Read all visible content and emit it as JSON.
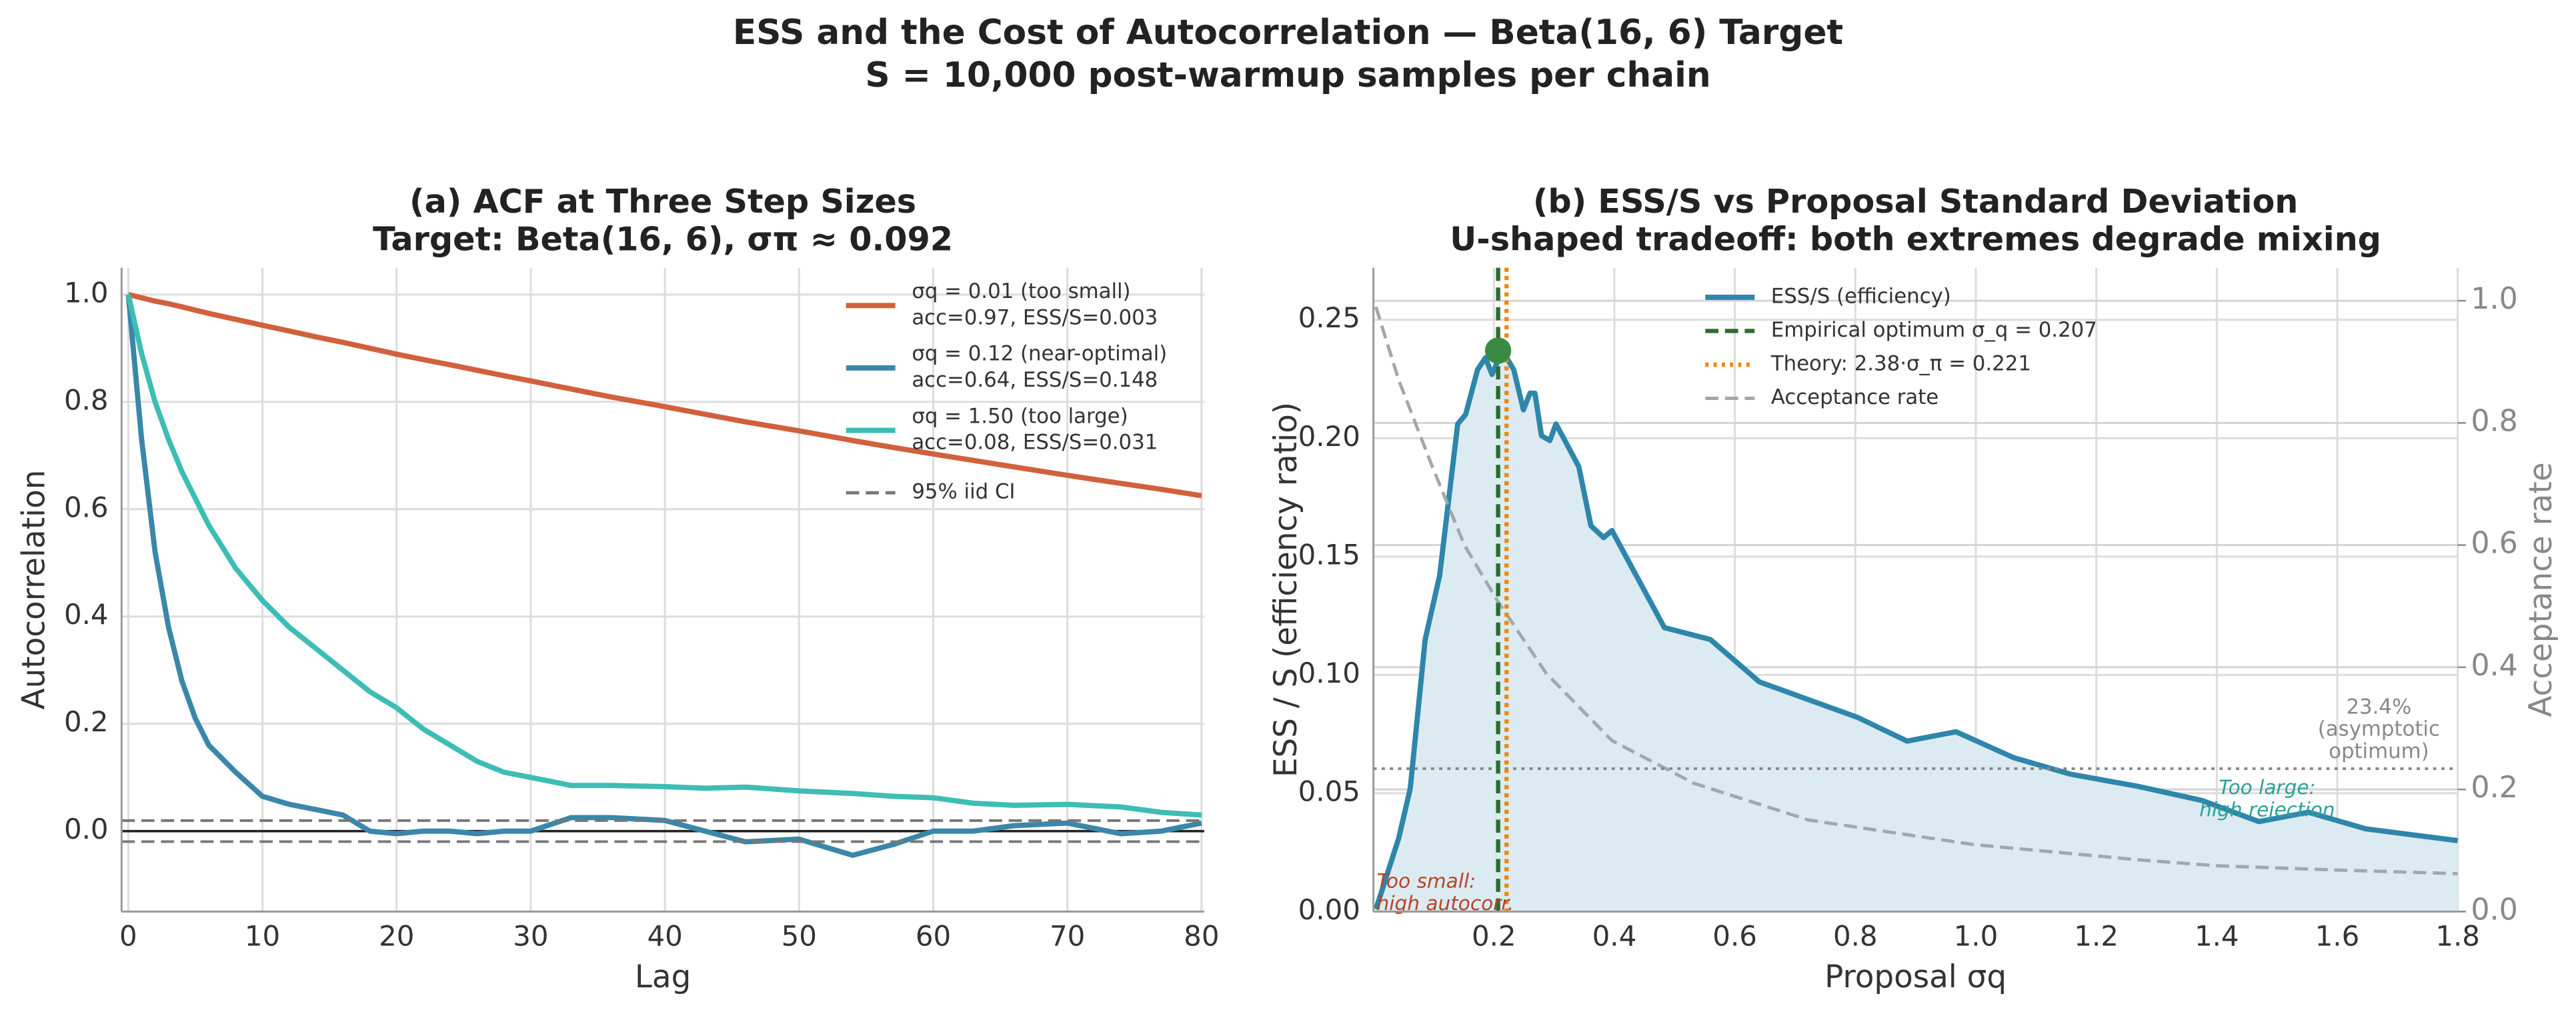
{
  "title": "ESS and the Cost of Autocorrelation — Beta(16, 6) Target",
  "subtitle": "S = 10,000 post-warmup samples per chain",
  "chart_data": [
    {
      "type": "line",
      "title": "(a)  ACF at Three Step Sizes",
      "subtitle": "Target: Beta(16, 6),  σπ ≈ 0.092",
      "x_label": "Lag",
      "y_label": "Autocorrelation",
      "xlim": [
        -0.5,
        80.2
      ],
      "ylim": [
        -0.15,
        1.05
      ],
      "xticks": [
        0,
        10,
        20,
        30,
        40,
        50,
        60,
        70,
        80
      ],
      "yticks": [
        {
          "value": 0,
          "label": "0.0"
        },
        0.2,
        0.4,
        0.6,
        0.8,
        {
          "value": 1,
          "label": "1.0"
        }
      ],
      "grid": true,
      "x": [
        0,
        1,
        2,
        3,
        4,
        5,
        6,
        8,
        10,
        12,
        14,
        16,
        18,
        20,
        22,
        24,
        26,
        28,
        30,
        33,
        36,
        40,
        43,
        46,
        50,
        54,
        57,
        60,
        63,
        66,
        70,
        74,
        77,
        80
      ],
      "series": [
        {
          "name": "σq = 0.01  (too small)",
          "note": "acc=0.97, ESS/S=0.003",
          "color": "#d1603d",
          "values": [
            1,
            0.994,
            0.988,
            0.983,
            0.977,
            0.971,
            0.965,
            0.954,
            0.943,
            0.932,
            0.921,
            0.911,
            0.9,
            0.889,
            0.879,
            0.869,
            0.859,
            0.849,
            0.839,
            0.824,
            0.809,
            0.791,
            0.777,
            0.763,
            0.746,
            0.728,
            0.715,
            0.703,
            0.691,
            0.679,
            0.663,
            0.648,
            0.637,
            0.625
          ]
        },
        {
          "name": "σq = 0.12  (near-optimal)",
          "note": "acc=0.64, ESS/S=0.148",
          "color": "#3a87aa",
          "values": [
            1,
            0.73,
            0.52,
            0.38,
            0.28,
            0.21,
            0.16,
            0.11,
            0.065,
            0.05,
            0.04,
            0.03,
            0.0,
            -0.005,
            0.0,
            0.0,
            -0.005,
            0.0,
            0.0,
            0.025,
            0.025,
            0.02,
            0.0,
            -0.02,
            -0.015,
            -0.045,
            -0.025,
            0.0,
            0.0,
            0.01,
            0.015,
            -0.005,
            0.0,
            0.015
          ]
        },
        {
          "name": "σq = 1.50  (too large)",
          "note": "acc=0.08, ESS/S=0.031",
          "color": "#3dbdb5",
          "values": [
            1,
            0.89,
            0.8,
            0.73,
            0.67,
            0.62,
            0.57,
            0.49,
            0.43,
            0.38,
            0.34,
            0.3,
            0.26,
            0.23,
            0.19,
            0.16,
            0.13,
            0.11,
            0.1,
            0.085,
            0.085,
            0.083,
            0.08,
            0.082,
            0.075,
            0.07,
            0.065,
            0.062,
            0.052,
            0.048,
            0.05,
            0.045,
            0.035,
            0.03
          ]
        }
      ],
      "hlines": [
        {
          "name": "95% iid CI",
          "values": [
            -0.0196,
            0.0196
          ],
          "color": "#777777",
          "style": "dashed"
        }
      ],
      "legend": "upper right"
    },
    {
      "type": "line",
      "title": "(b)  ESS/S vs Proposal Standard Deviation",
      "subtitle": "U-shaped tradeoff: both extremes degrade mixing",
      "x_label": "Proposal σq",
      "y_label": "ESS / S  (efficiency ratio)",
      "y2_label": "Acceptance rate",
      "xlim": [
        0,
        1.8
      ],
      "ylim": [
        0,
        0.272
      ],
      "y2lim": [
        0,
        1.054
      ],
      "xticks": [
        0.2,
        0.4,
        0.6,
        0.8,
        {
          "value": 1,
          "label": "1.0"
        },
        1.2,
        1.4,
        1.6,
        1.8
      ],
      "yticks": [
        {
          "value": 0,
          "label": "0.00"
        },
        {
          "value": 0.05,
          "label": "0.05"
        },
        {
          "value": 0.1,
          "label": "0.10"
        },
        {
          "value": 0.15,
          "label": "0.15"
        },
        {
          "value": 0.2,
          "label": "0.20"
        },
        {
          "value": 0.25,
          "label": "0.25"
        }
      ],
      "y2ticks": [
        {
          "value": 0,
          "label": "0.0"
        },
        0.2,
        0.4,
        0.6,
        0.8,
        {
          "value": 1,
          "label": "1.0"
        }
      ],
      "grid": true,
      "series": [
        {
          "name": "ESS/S (efficiency)",
          "color": "#2e86ab",
          "fill": "#dcebf1",
          "x": [
            0.004,
            0.042,
            0.061,
            0.086,
            0.11,
            0.14,
            0.153,
            0.173,
            0.186,
            0.197,
            0.214,
            0.233,
            0.249,
            0.26,
            0.268,
            0.279,
            0.293,
            0.303,
            0.32,
            0.341,
            0.361,
            0.382,
            0.396,
            0.483,
            0.559,
            0.641,
            0.804,
            0.886,
            0.967,
            1.063,
            1.158,
            1.267,
            1.375,
            1.47,
            1.552,
            1.647,
            1.8
          ],
          "values": [
            0.001,
            0.031,
            0.052,
            0.115,
            0.142,
            0.206,
            0.21,
            0.229,
            0.234,
            0.227,
            0.237,
            0.229,
            0.212,
            0.219,
            0.219,
            0.201,
            0.199,
            0.206,
            0.198,
            0.188,
            0.163,
            0.158,
            0.161,
            0.12,
            0.115,
            0.097,
            0.082,
            0.072,
            0.076,
            0.065,
            0.058,
            0.053,
            0.047,
            0.038,
            0.042,
            0.035,
            0.03
          ]
        },
        {
          "name": "Acceptance rate",
          "color": "#a0a8ab",
          "style": "dashed",
          "axis": "y2",
          "x": [
            0.004,
            0.042,
            0.097,
            0.151,
            0.205,
            0.287,
            0.396,
            0.532,
            0.722,
            0.994,
            1.267,
            1.4,
            1.6,
            1.8
          ],
          "values": [
            0.99,
            0.87,
            0.73,
            0.6,
            0.51,
            0.39,
            0.28,
            0.21,
            0.15,
            0.11,
            0.085,
            0.075,
            0.068,
            0.062
          ]
        }
      ],
      "vlines": [
        {
          "name": "Empirical optimum σ_q = 0.207",
          "value": 0.207,
          "color": "#2e6b34",
          "style": "dashed"
        },
        {
          "name": "Theory: 2.38·σ_π = 0.221",
          "value": 0.221,
          "color": "#f0880a",
          "style": "dotted"
        }
      ],
      "hlines": [
        {
          "values": [
            0.234
          ],
          "axis": "y2",
          "color": "#888888",
          "style": "dotted",
          "label_lines": [
            "23.4%",
            "(asymptotic",
            "optimum)"
          ]
        }
      ],
      "markers": [
        {
          "x": 0.207,
          "y": 0.237,
          "color": "#3a8a43"
        }
      ],
      "annotations": [
        {
          "lines": [
            "Too small:",
            "high autocorr."
          ],
          "color": "#b5442a"
        },
        {
          "lines": [
            "Too large:",
            "high rejection"
          ],
          "color": "#2aa198"
        }
      ],
      "legend": "upper center"
    }
  ]
}
